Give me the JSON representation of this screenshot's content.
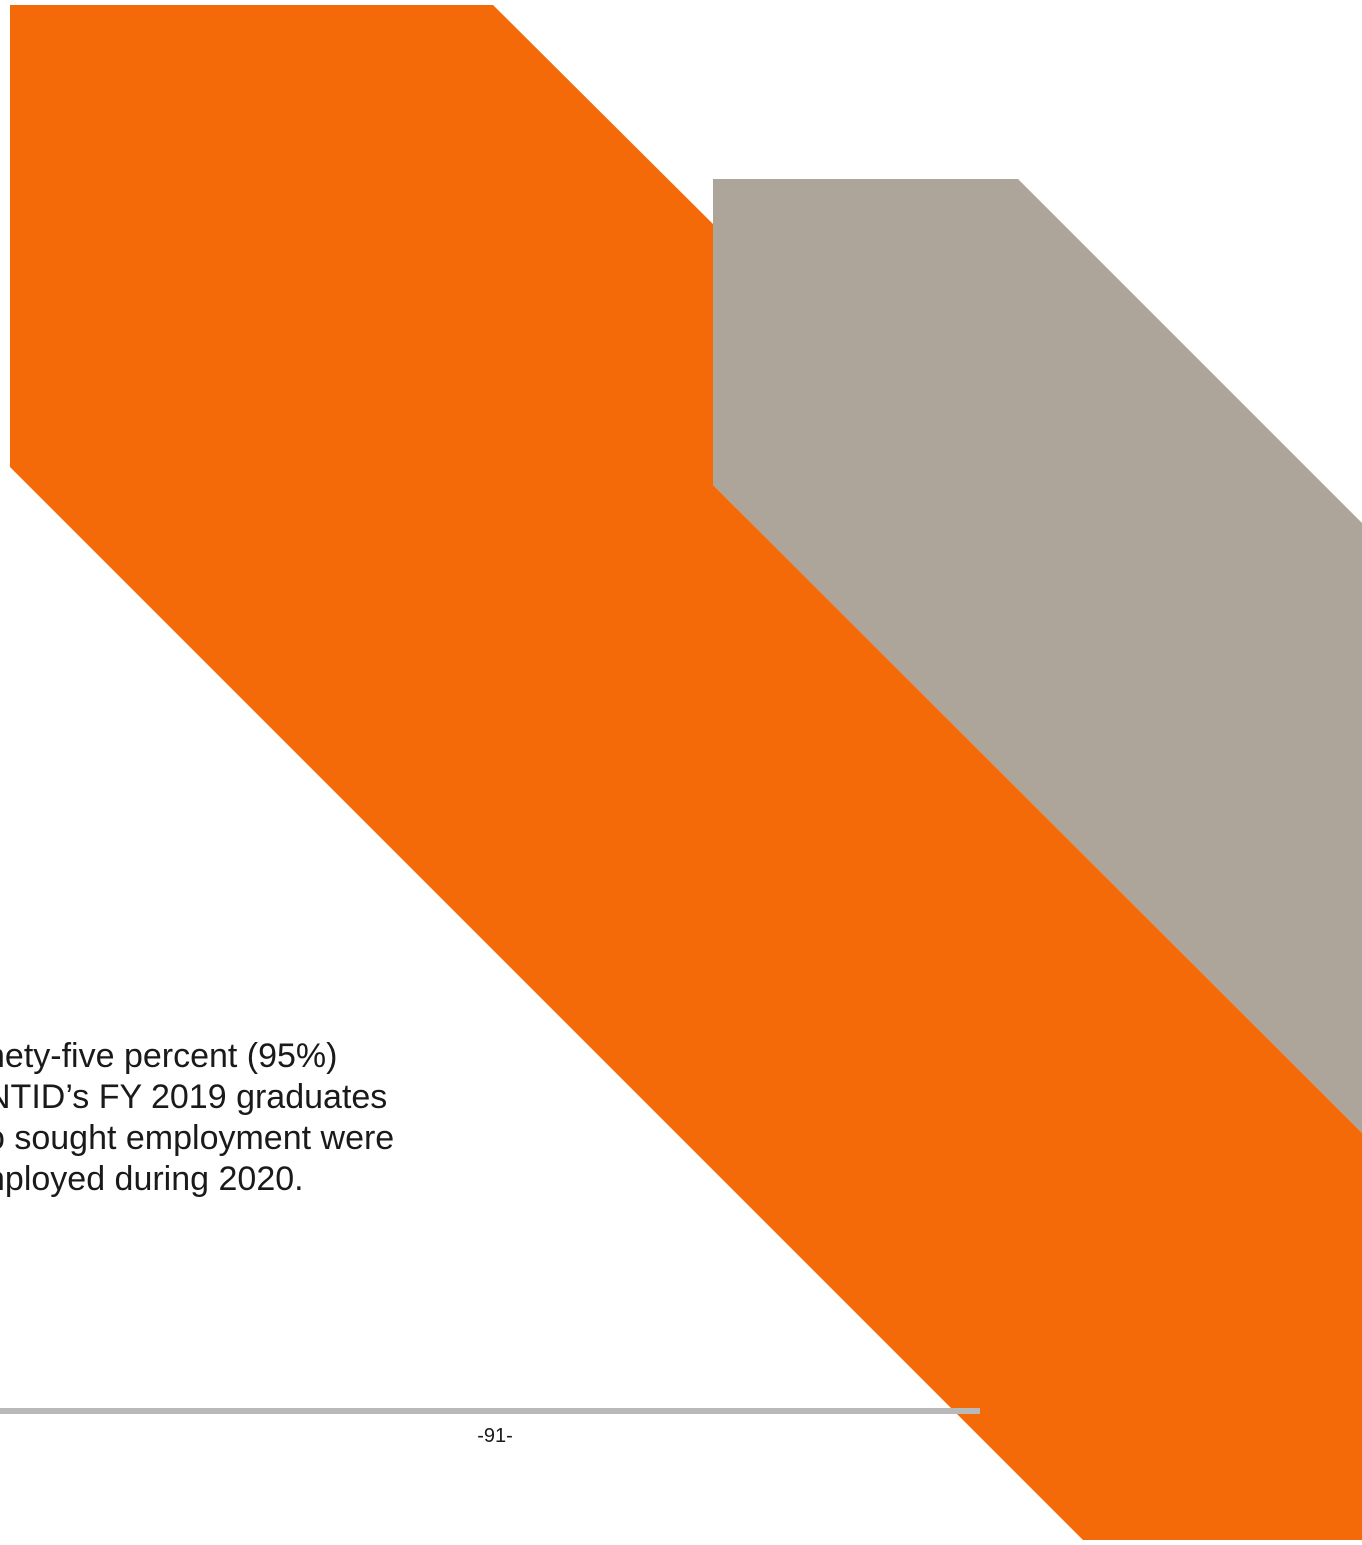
{
  "colors": {
    "accent_orange": "#F56A08",
    "accent_gray": "#ADA49A",
    "rule_gray": "#B9B9B9",
    "text": "#1A1A1A"
  },
  "content": {
    "lines": [
      "nety-five percent (95%)",
      "NTID’s FY 2019 graduates",
      "o sought employment were",
      "nployed during 2020."
    ]
  },
  "footer": {
    "page_number": "-91-"
  }
}
